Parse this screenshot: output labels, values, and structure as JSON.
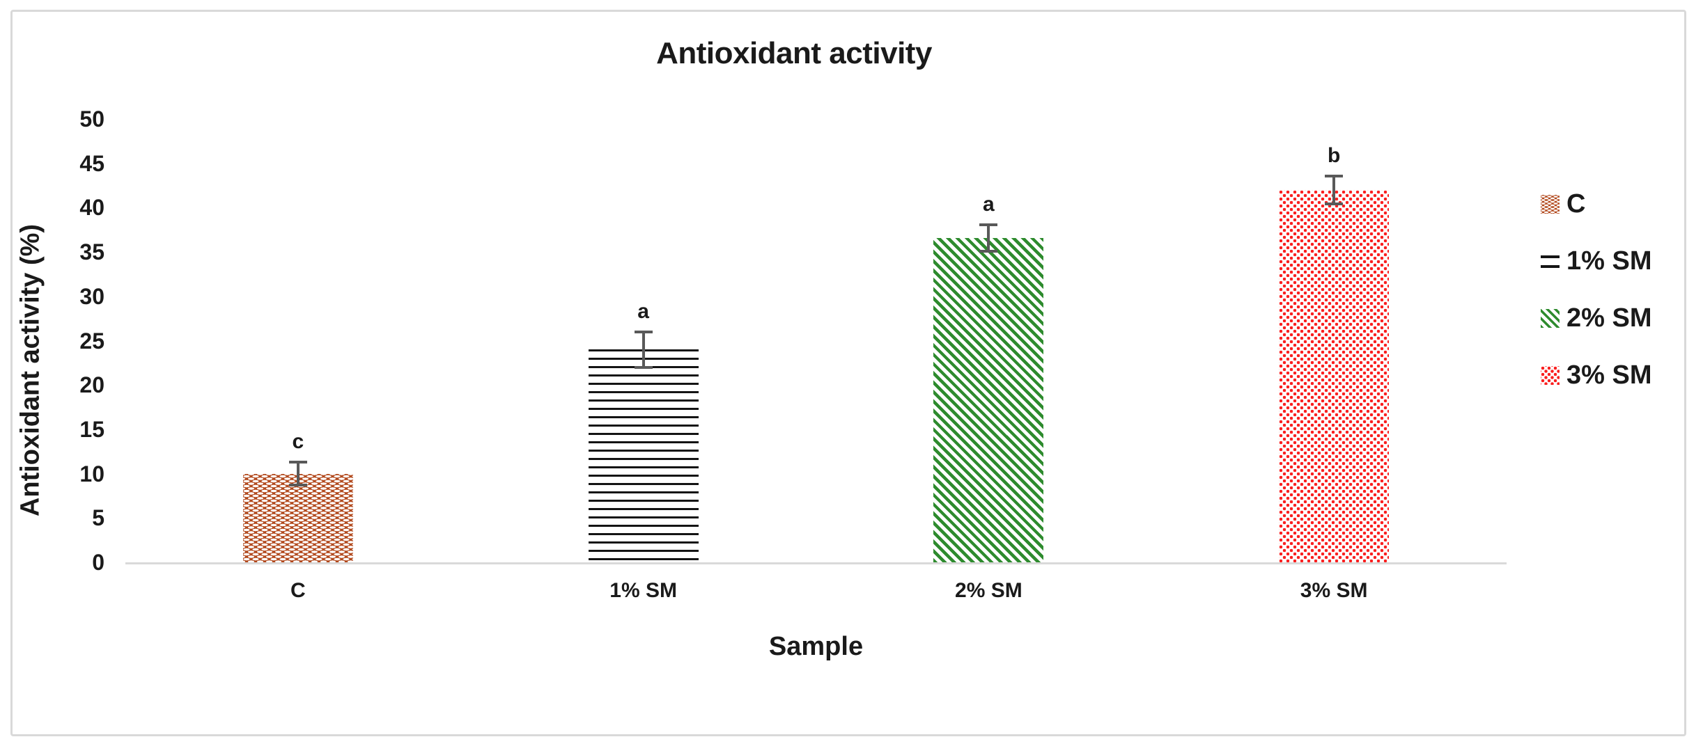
{
  "chart_data": {
    "type": "bar",
    "title": "Antioxidant activity",
    "xlabel": "Sample",
    "ylabel": "Antioxidant activity (%)",
    "ylim": [
      0,
      50
    ],
    "ytick_step": 5,
    "yticks": [
      0,
      5,
      10,
      15,
      20,
      25,
      30,
      35,
      40,
      45,
      50
    ],
    "grid": false,
    "legend_position": "right",
    "categories": [
      "C",
      "1% SM",
      "2% SM",
      "3% SM"
    ],
    "values": [
      10,
      24,
      36.6,
      42
    ],
    "errors": [
      1.3,
      2.0,
      1.5,
      1.6
    ],
    "bars": [
      {
        "category": "C",
        "value": 10,
        "error": 1.3,
        "sig_letter": "c",
        "pattern": "brown-brick",
        "color": "#B2491D"
      },
      {
        "category": "1% SM",
        "value": 24,
        "error": 2.0,
        "sig_letter": "a",
        "pattern": "black-horizontal-lines",
        "color": "#141414"
      },
      {
        "category": "2% SM",
        "value": 36.6,
        "error": 1.5,
        "sig_letter": "a",
        "pattern": "green-diagonal-stripes",
        "color": "#2E8B2E"
      },
      {
        "category": "3% SM",
        "value": 42,
        "error": 1.6,
        "sig_letter": "b",
        "pattern": "red-dots",
        "color": "#FA1F1F"
      }
    ],
    "legend": [
      {
        "label": "C",
        "pattern": "brown-brick"
      },
      {
        "label": "1% SM",
        "pattern": "black-horizontal-lines"
      },
      {
        "label": "2% SM",
        "pattern": "green-diagonal-stripes"
      },
      {
        "label": "3% SM",
        "pattern": "red-dots"
      }
    ]
  },
  "colors": {
    "frame_border": "#D9D9D9",
    "axis_line": "#D9D9D9",
    "error_bar": "#595959",
    "text": "#1A1A1A",
    "background": "#FFFFFF"
  }
}
